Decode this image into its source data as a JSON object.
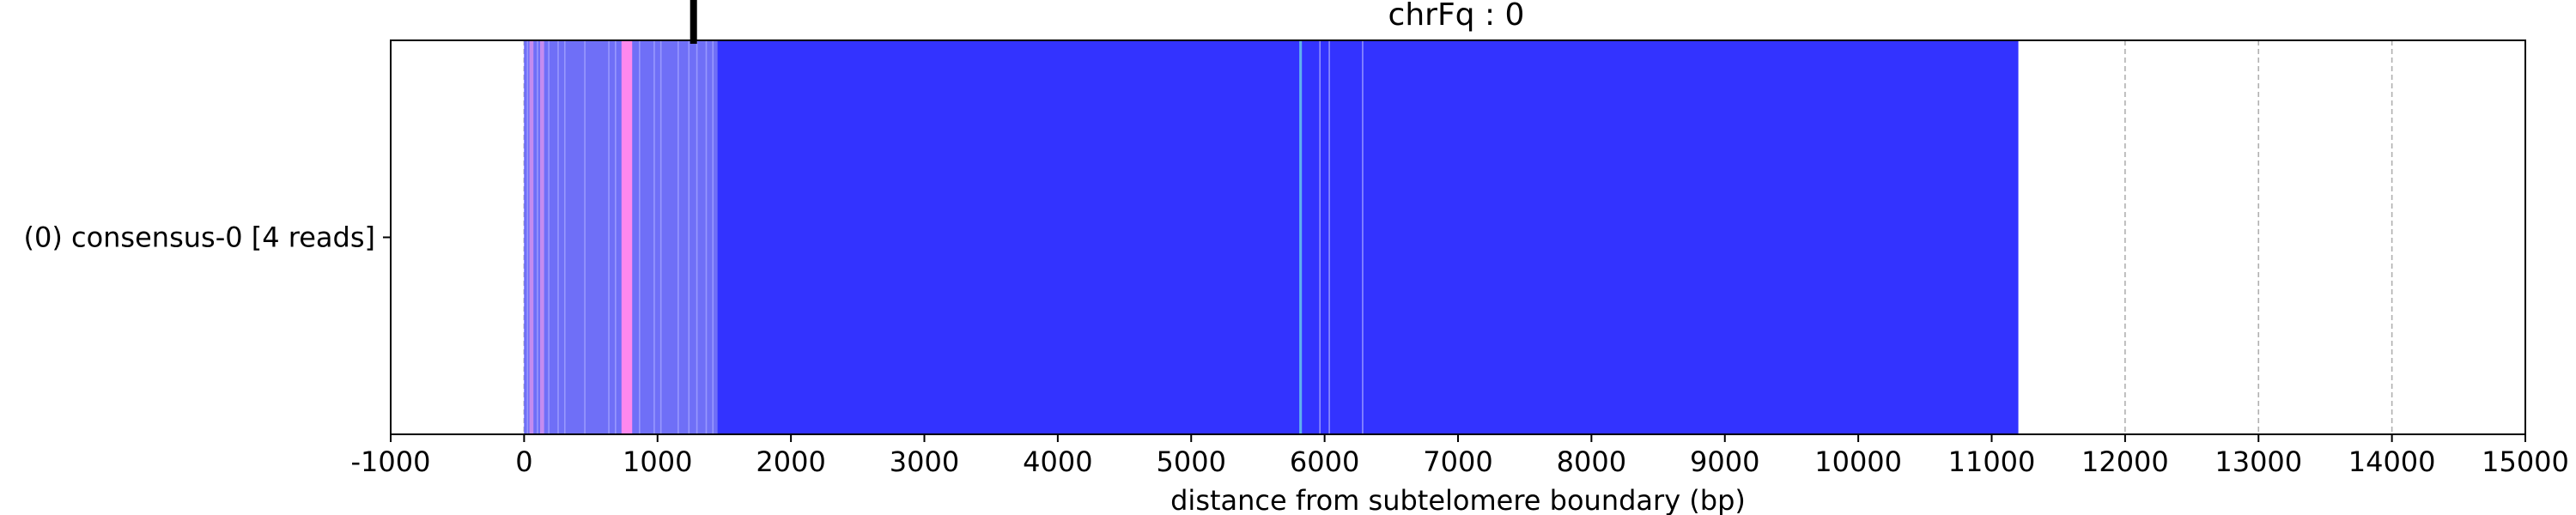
{
  "chart_data": {
    "type": "bar",
    "title": "chrFq : 0",
    "xlabel": "distance from subtelomere boundary (bp)",
    "ylabel": "",
    "xlim": [
      -1000,
      15000
    ],
    "x_ticks": [
      -1000,
      0,
      1000,
      2000,
      3000,
      4000,
      5000,
      6000,
      7000,
      8000,
      9000,
      10000,
      11000,
      12000,
      13000,
      14000,
      15000
    ],
    "x_tick_labels": [
      "-1000",
      "0",
      "1000",
      "2000",
      "3000",
      "4000",
      "5000",
      "6000",
      "7000",
      "8000",
      "9000",
      "10000",
      "11000",
      "12000",
      "13000",
      "14000",
      "15000"
    ],
    "grid": "x-dashed",
    "categories": [
      "(0) consensus-0 [4 reads]"
    ],
    "reads": [
      {
        "label": "(0) consensus-0 [4 reads]",
        "start": 0,
        "end": 11200,
        "base_color": "#3333ff",
        "segments": [
          {
            "start": 0,
            "end": 1450,
            "color": "#6f6ff7"
          },
          {
            "start": 40,
            "end": 70,
            "color": "#c48cf0"
          },
          {
            "start": 120,
            "end": 150,
            "color": "#c48cf0"
          },
          {
            "start": 730,
            "end": 810,
            "color": "#ff88ee"
          },
          {
            "start": 5810,
            "end": 5830,
            "color": "#5fb0f0"
          }
        ],
        "stripes": [
          20,
          95,
          180,
          250,
          300,
          450,
          630,
          680,
          860,
          970,
          1020,
          1150,
          1230,
          1290,
          1360,
          1410,
          5960,
          6030,
          6280
        ]
      }
    ],
    "markers": [
      {
        "x": 1270,
        "label": ""
      }
    ]
  }
}
